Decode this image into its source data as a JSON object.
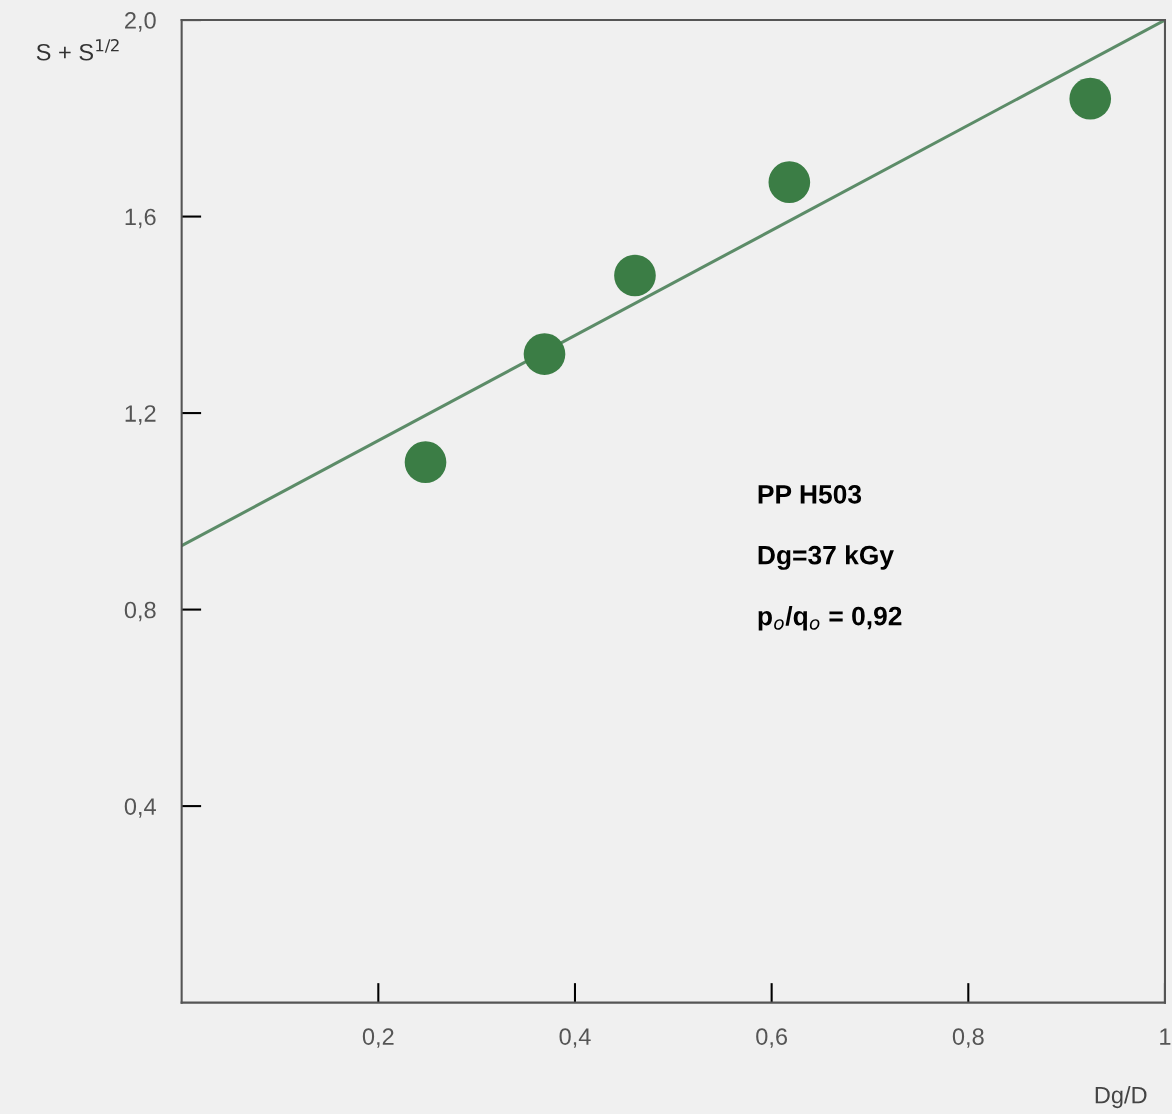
{
  "chart_data": {
    "type": "scatter",
    "xlabel": "Dg/D",
    "ylabel": "S + S$^{1/2}$",
    "annotations": [
      "PP H503",
      "Dg=37 kGy",
      "p$_{o}$/q$_{o}$ = 0,92"
    ],
    "series": [
      {
        "marker": "circle",
        "color": "#3b7d45",
        "x": [
          0.248,
          0.369,
          0.461,
          0.618,
          0.924
        ],
        "values": [
          1.1,
          1.32,
          1.48,
          1.67,
          1.84
        ]
      },
      {
        "type": "line",
        "color": "#5c8c68",
        "x": [
          0,
          1
        ],
        "values": [
          0.93,
          2.0
        ]
      }
    ],
    "xlim": [
      0,
      1
    ],
    "ylim": [
      0,
      2.0
    ],
    "xticks": [
      {
        "value": 0.2,
        "label": "0,2"
      },
      {
        "value": 0.4,
        "label": "0,4"
      },
      {
        "value": 0.6,
        "label": "0,6"
      },
      {
        "value": 0.8,
        "label": "0,8"
      },
      1
    ],
    "yticks": [
      {
        "value": 0.4,
        "label": "0,4"
      },
      {
        "value": 0.8,
        "label": "0,8"
      },
      {
        "value": 1.2,
        "label": "1,2"
      },
      {
        "value": 1.6,
        "label": "1,6"
      },
      {
        "value": 2.0,
        "label": "2,0"
      }
    ],
    "grid": false,
    "legend": false
  }
}
